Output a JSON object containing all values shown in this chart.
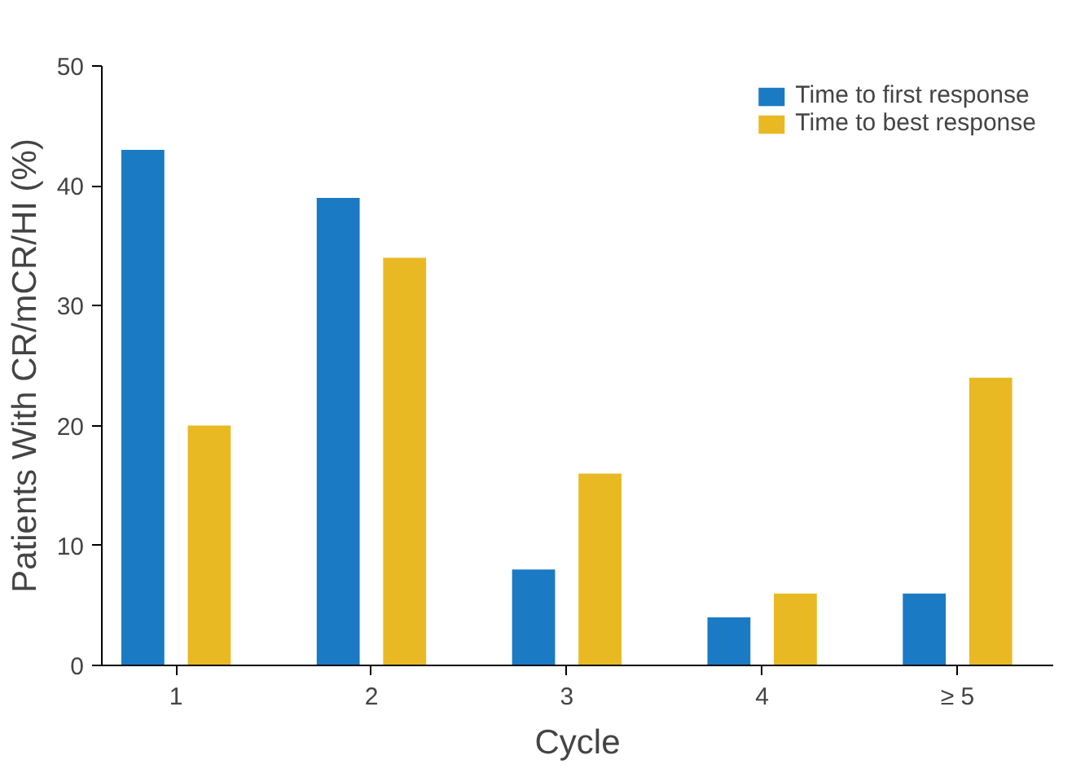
{
  "chart_data": {
    "type": "bar",
    "xlabel": "Cycle",
    "ylabel": "Patients With CR/mCR/HI (%)",
    "categories": [
      "1",
      "2",
      "3",
      "4",
      "≥ 5"
    ],
    "series": [
      {
        "name": "Time to first response",
        "color": "#1a7ac4",
        "values": [
          43,
          39,
          8,
          4,
          6
        ]
      },
      {
        "name": "Time to best response",
        "color": "#e8b923",
        "values": [
          20,
          34,
          16,
          6,
          24
        ]
      }
    ],
    "ylim": [
      0,
      50
    ],
    "yticks": [
      0,
      10,
      20,
      30,
      40,
      50
    ],
    "grid": false,
    "legend": "top right"
  }
}
